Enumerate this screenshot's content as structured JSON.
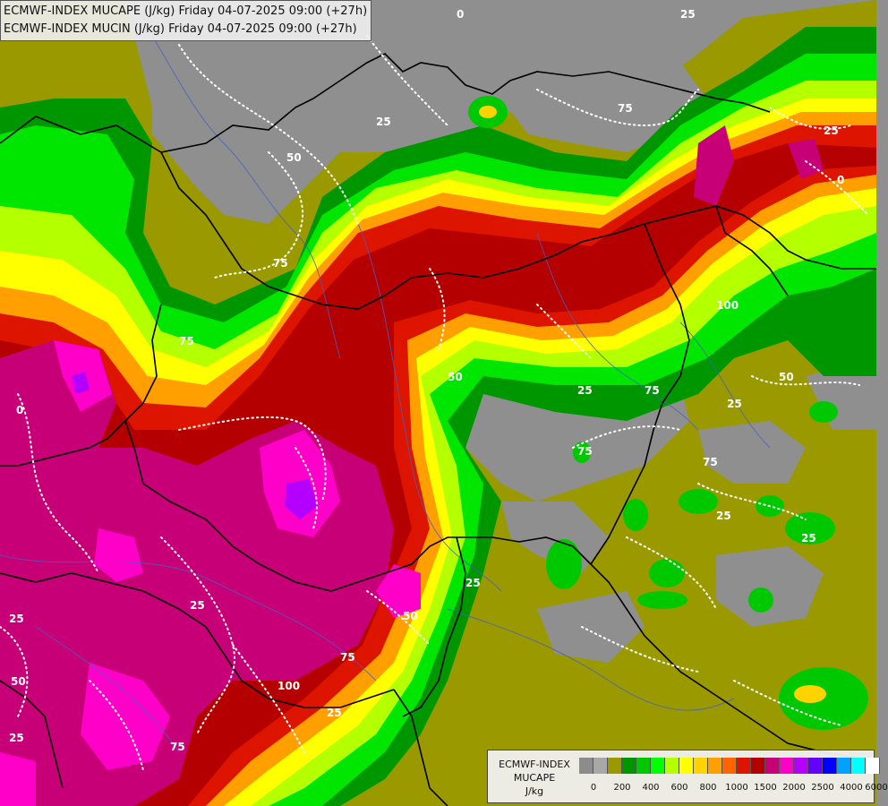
{
  "header": {
    "line1": "ECMWF-INDEX MUCAPE (J/kg) Friday 04-07-2025 09:00 (+27h)",
    "line2": "ECMWF-INDEX MUCIN (J/kg) Friday 04-07-2025 09:00 (+27h)"
  },
  "legend": {
    "title1": "ECMWF-INDEX",
    "title2": "MUCAPE",
    "unit": "J/kg",
    "colors": [
      "#8c8c8c",
      "#a8a8a8",
      "#9a9a00",
      "#009600",
      "#00c800",
      "#00ff00",
      "#b4ff00",
      "#ffff00",
      "#ffd200",
      "#ffa000",
      "#ff6400",
      "#dc1400",
      "#b40000",
      "#c80078",
      "#ff00c8",
      "#b400ff",
      "#6400ff",
      "#0000ff",
      "#00a0ff",
      "#00ffff",
      "#ffffff"
    ],
    "tick_labels": [
      "0",
      "200",
      "400",
      "600",
      "800",
      "1000",
      "1500",
      "2000",
      "2500",
      "4000",
      "6000"
    ]
  },
  "contour_labels": [
    "0",
    "25",
    "50",
    "75",
    "100"
  ]
}
